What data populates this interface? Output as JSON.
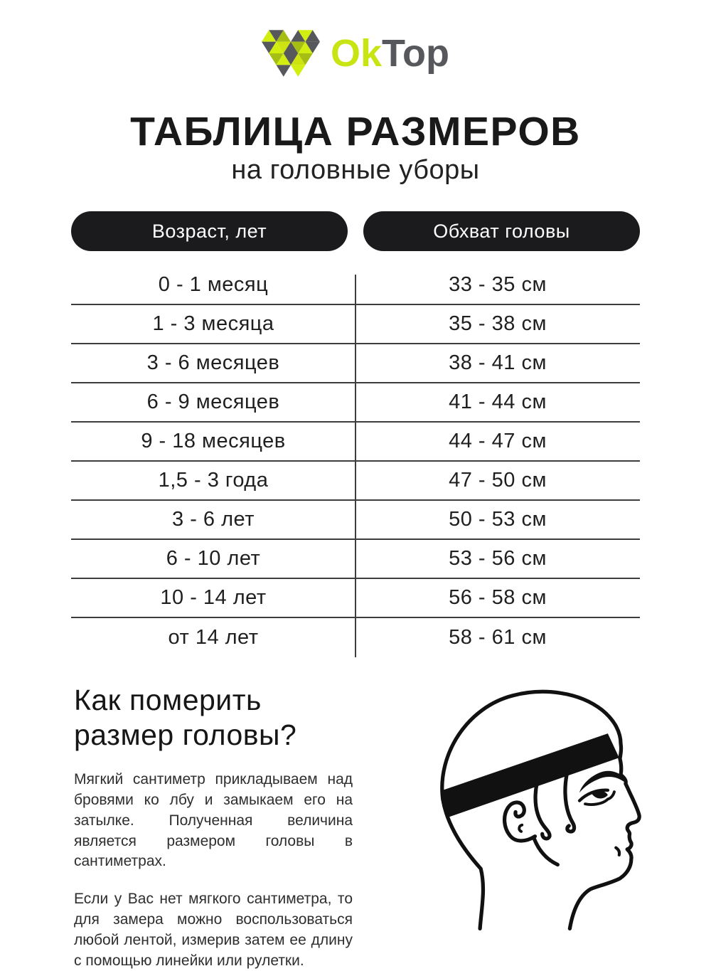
{
  "logo": {
    "ok": "Ok",
    "top": "Top",
    "lime": "#c8e412",
    "gray": "#57585b"
  },
  "title": "ТАБЛИЦА РАЗМЕРОВ",
  "subtitle": "на головные уборы",
  "chart_data": {
    "type": "table",
    "columns": [
      "Возраст, лет",
      "Обхват головы"
    ],
    "rows": [
      [
        "0 - 1 месяц",
        "33 - 35 см"
      ],
      [
        "1 - 3 месяца",
        "35 - 38 см"
      ],
      [
        "3 - 6 месяцев",
        "38 - 41 см"
      ],
      [
        "6 - 9 месяцев",
        "41 - 44 см"
      ],
      [
        "9 - 18 месяцев",
        "44 - 47 см"
      ],
      [
        "1,5 - 3 года",
        "47 - 50 см"
      ],
      [
        "3 - 6 лет",
        "50 - 53 см"
      ],
      [
        "6 - 10 лет",
        "53 - 56 см"
      ],
      [
        "10 - 14 лет",
        "56 - 58 см"
      ],
      [
        "от 14 лет",
        "58 - 61 см"
      ]
    ]
  },
  "how_to": {
    "heading": "Как померить размер головы?",
    "paragraphs": [
      "Мягкий сантиметр прикладываем над бровями ко лбу и замыкаем его на затылке. Полученная величина является размером головы в сантиметрах.",
      "Если у Вас нет мягкого сантиметра, то для замера можно воспользоваться любой лентой, измерив затем ее длину с помощью линейки или рулетки."
    ]
  },
  "illustration": {
    "name": "head-profile-with-measuring-band",
    "band_color": "#111111"
  },
  "colors": {
    "pill_background": "#1b1b1d",
    "pill_text": "#ffffff",
    "table_line": "#3d3d3d",
    "text": "#1f1f1f"
  }
}
